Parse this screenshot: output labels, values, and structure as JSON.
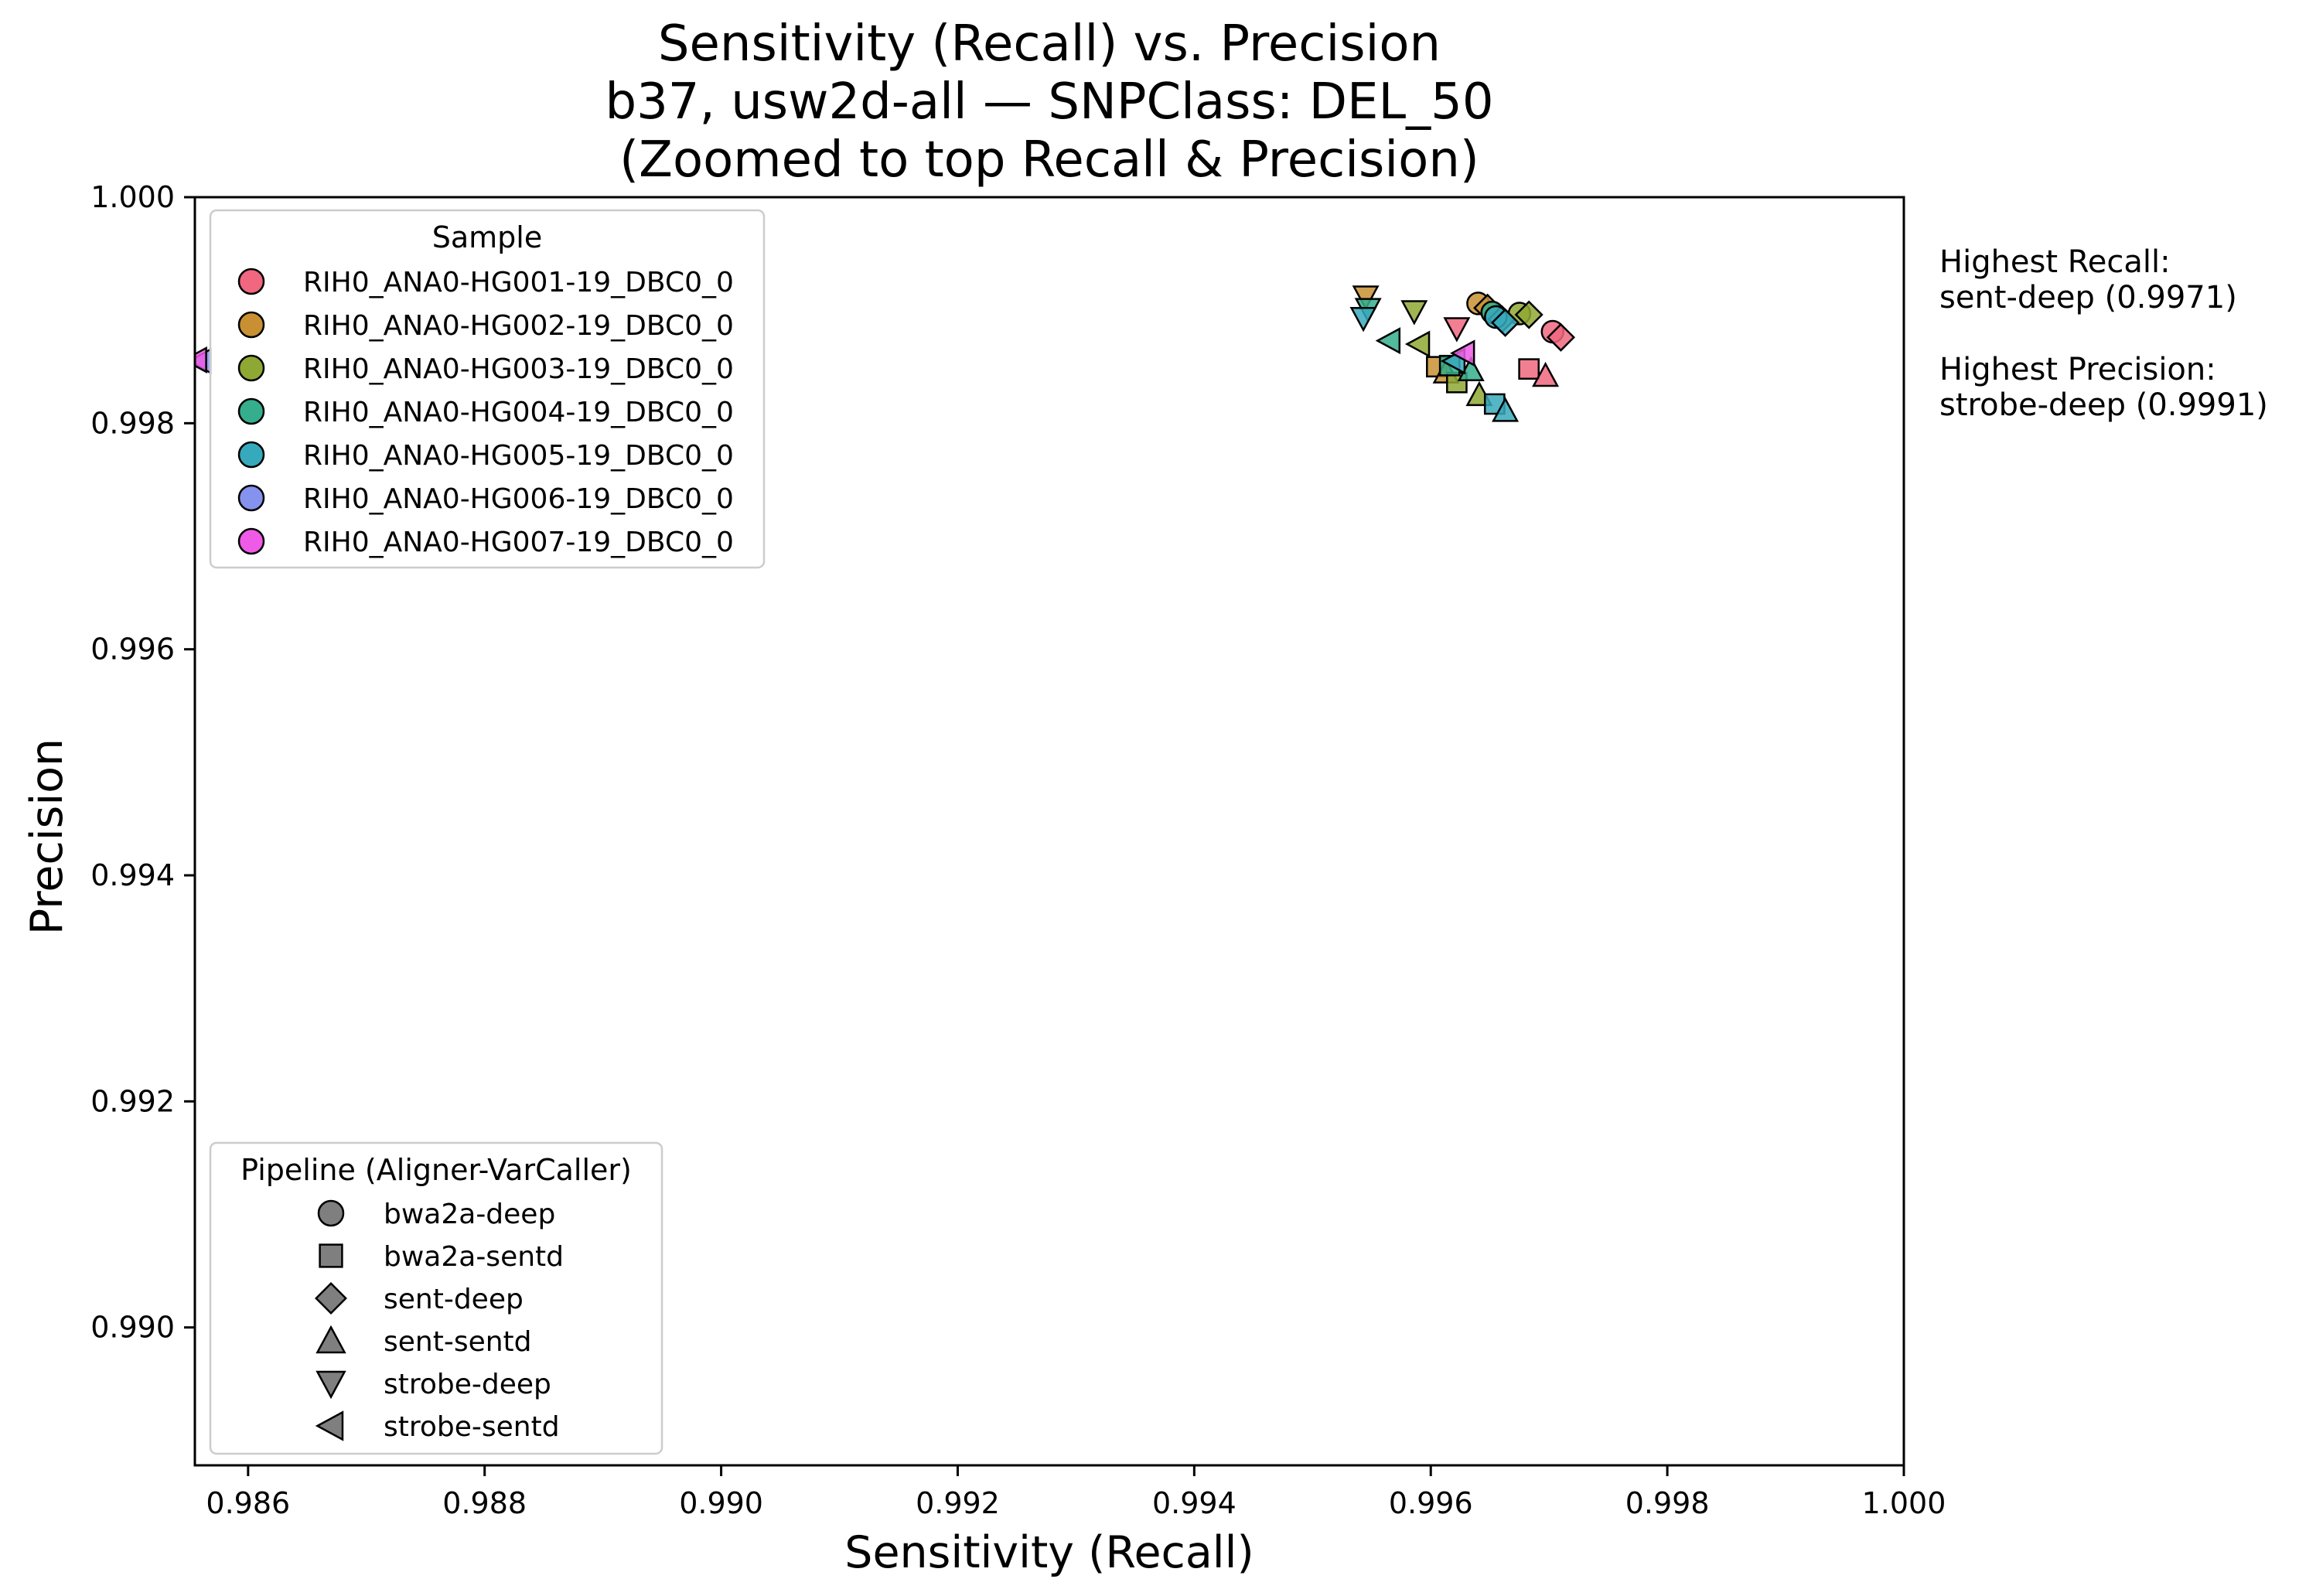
{
  "chart_data": {
    "type": "scatter",
    "title_lines": [
      "Sensitivity (Recall) vs. Precision",
      "b37, usw2d-all — SNPClass: DEL_50",
      "(Zoomed to top Recall & Precision)"
    ],
    "xlabel": "Sensitivity (Recall)",
    "ylabel": "Precision",
    "xlim": [
      0.98555,
      1.0
    ],
    "ylim": [
      0.98878,
      1.0
    ],
    "x_ticks": [
      "0.986",
      "0.988",
      "0.990",
      "0.992",
      "0.994",
      "0.996",
      "0.998",
      "1.000"
    ],
    "x_tick_values": [
      0.986,
      0.988,
      0.99,
      0.992,
      0.994,
      0.996,
      0.998,
      1.0
    ],
    "y_ticks": [
      "0.990",
      "0.992",
      "0.994",
      "0.996",
      "0.998",
      "1.000"
    ],
    "y_tick_values": [
      0.99,
      0.992,
      0.994,
      0.996,
      0.998,
      1.0
    ],
    "grid": false,
    "samples": [
      {
        "name": "RIH0_ANA0-HG001-19_DBC0_0",
        "color": "#f0677f"
      },
      {
        "name": "RIH0_ANA0-HG002-19_DBC0_0",
        "color": "#c89032"
      },
      {
        "name": "RIH0_ANA0-HG003-19_DBC0_0",
        "color": "#8fa834"
      },
      {
        "name": "RIH0_ANA0-HG004-19_DBC0_0",
        "color": "#34ae8c"
      },
      {
        "name": "RIH0_ANA0-HG005-19_DBC0_0",
        "color": "#37a9bc"
      },
      {
        "name": "RIH0_ANA0-HG006-19_DBC0_0",
        "color": "#8592ee"
      },
      {
        "name": "RIH0_ANA0-HG007-19_DBC0_0",
        "color": "#ef5ae6"
      }
    ],
    "pipelines": [
      {
        "name": "bwa2a-deep",
        "marker": "circle"
      },
      {
        "name": "bwa2a-sentd",
        "marker": "square"
      },
      {
        "name": "sent-deep",
        "marker": "diamond"
      },
      {
        "name": "sent-sentd",
        "marker": "triangle-up"
      },
      {
        "name": "strobe-deep",
        "marker": "triangle-down"
      },
      {
        "name": "strobe-sentd",
        "marker": "triangle-left"
      }
    ],
    "legend_sample_title": "Sample",
    "legend_pipeline_title": "Pipeline (Aligner-VarCaller)",
    "legend_sample_location": "upper-left",
    "legend_pipeline_location": "lower-left",
    "points": [
      {
        "sample": 0,
        "pipeline": 0,
        "x": 0.99703,
        "y": 0.99881
      },
      {
        "sample": 0,
        "pipeline": 1,
        "x": 0.99683,
        "y": 0.99848
      },
      {
        "sample": 0,
        "pipeline": 2,
        "x": 0.9971,
        "y": 0.99876
      },
      {
        "sample": 0,
        "pipeline": 3,
        "x": 0.99697,
        "y": 0.99842
      },
      {
        "sample": 0,
        "pipeline": 4,
        "x": 0.99622,
        "y": 0.99884
      },
      {
        "sample": 1,
        "pipeline": 0,
        "x": 0.9964,
        "y": 0.99906
      },
      {
        "sample": 1,
        "pipeline": 1,
        "x": 0.99605,
        "y": 0.9985
      },
      {
        "sample": 1,
        "pipeline": 2,
        "x": 0.99648,
        "y": 0.99902
      },
      {
        "sample": 1,
        "pipeline": 3,
        "x": 0.99613,
        "y": 0.99845
      },
      {
        "sample": 1,
        "pipeline": 4,
        "x": 0.99545,
        "y": 0.99912
      },
      {
        "sample": 2,
        "pipeline": 0,
        "x": 0.99675,
        "y": 0.99897
      },
      {
        "sample": 2,
        "pipeline": 1,
        "x": 0.99622,
        "y": 0.99836
      },
      {
        "sample": 2,
        "pipeline": 2,
        "x": 0.99683,
        "y": 0.99896
      },
      {
        "sample": 2,
        "pipeline": 3,
        "x": 0.99641,
        "y": 0.99825
      },
      {
        "sample": 2,
        "pipeline": 4,
        "x": 0.99586,
        "y": 0.99899
      },
      {
        "sample": 2,
        "pipeline": 5,
        "x": 0.9959,
        "y": 0.9987
      },
      {
        "sample": 3,
        "pipeline": 0,
        "x": 0.99652,
        "y": 0.99898
      },
      {
        "sample": 3,
        "pipeline": 1,
        "x": 0.99616,
        "y": 0.99851
      },
      {
        "sample": 3,
        "pipeline": 2,
        "x": 0.9966,
        "y": 0.99892
      },
      {
        "sample": 3,
        "pipeline": 3,
        "x": 0.99634,
        "y": 0.99847
      },
      {
        "sample": 3,
        "pipeline": 4,
        "x": 0.99547,
        "y": 0.99901
      },
      {
        "sample": 3,
        "pipeline": 5,
        "x": 0.99565,
        "y": 0.99873
      },
      {
        "sample": 4,
        "pipeline": 0,
        "x": 0.99655,
        "y": 0.99894
      },
      {
        "sample": 4,
        "pipeline": 1,
        "x": 0.99654,
        "y": 0.99817
      },
      {
        "sample": 4,
        "pipeline": 2,
        "x": 0.99663,
        "y": 0.99889
      },
      {
        "sample": 4,
        "pipeline": 3,
        "x": 0.99663,
        "y": 0.99811
      },
      {
        "sample": 4,
        "pipeline": 4,
        "x": 0.99543,
        "y": 0.99893
      },
      {
        "sample": 4,
        "pipeline": 5,
        "x": 0.9962,
        "y": 0.99855
      },
      {
        "sample": 5,
        "pipeline": 5,
        "x": 0.9856,
        "y": 0.99855
      },
      {
        "sample": 6,
        "pipeline": 5,
        "x": 0.99628,
        "y": 0.99862
      },
      {
        "sample": 6,
        "pipeline": 5,
        "x": 0.98556,
        "y": 0.99856
      }
    ]
  },
  "annotations": {
    "highest_recall_label": "Highest Recall:",
    "highest_recall_value": "sent-deep (0.9971)",
    "highest_precision_label": "Highest Precision:",
    "highest_precision_value": "strobe-deep (0.9991)"
  }
}
